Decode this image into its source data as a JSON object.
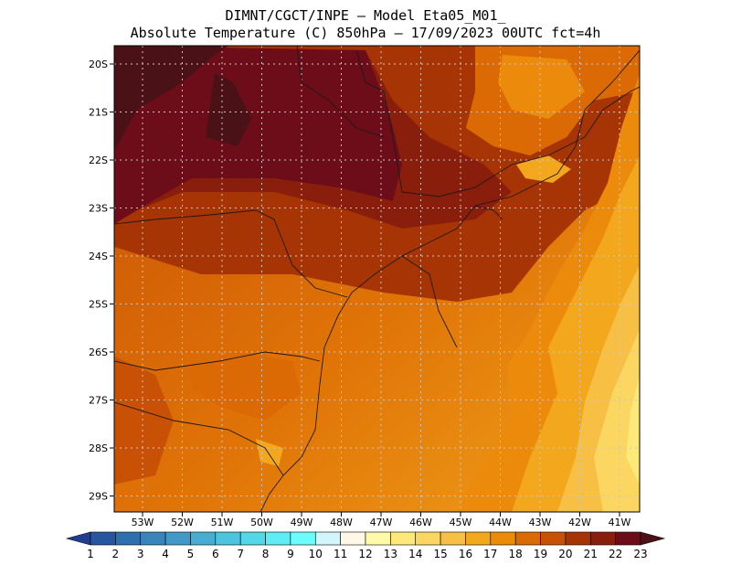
{
  "header": {
    "line1": "DIMNT/CGCT/INPE –  Model Eta05_M01_",
    "line2": "Absolute Temperature (C) 850hPa –  17/09/2023 00UTC fct=4h"
  },
  "map": {
    "lat_labels": [
      "20S",
      "21S",
      "22S",
      "23S",
      "24S",
      "25S",
      "26S",
      "27S",
      "28S",
      "29S"
    ],
    "lon_labels": [
      "53W",
      "52W",
      "51W",
      "50W",
      "49W",
      "48W",
      "47W",
      "46W",
      "45W",
      "44W",
      "43W",
      "42W",
      "41W"
    ]
  },
  "colorbar": {
    "labels": [
      "1",
      "2",
      "3",
      "4",
      "5",
      "6",
      "7",
      "8",
      "9",
      "10",
      "11",
      "12",
      "13",
      "14",
      "15",
      "16",
      "17",
      "18",
      "19",
      "20",
      "21",
      "22",
      "23"
    ],
    "colors": [
      "#1f3e8f",
      "#26569f",
      "#2f6fae",
      "#3a84bb",
      "#4298c6",
      "#47aed2",
      "#4cc4dd",
      "#54d8e8",
      "#60ecf5",
      "#6cfcfc",
      "#d2f6fb",
      "#fff8e6",
      "#fffaaa",
      "#fde97a",
      "#fbd660",
      "#f7c044",
      "#f3a71d",
      "#ec8a0c",
      "#dc6a04",
      "#c85106",
      "#a73405",
      "#8a1e0d",
      "#6d0d1a",
      "#4a1216"
    ]
  }
}
